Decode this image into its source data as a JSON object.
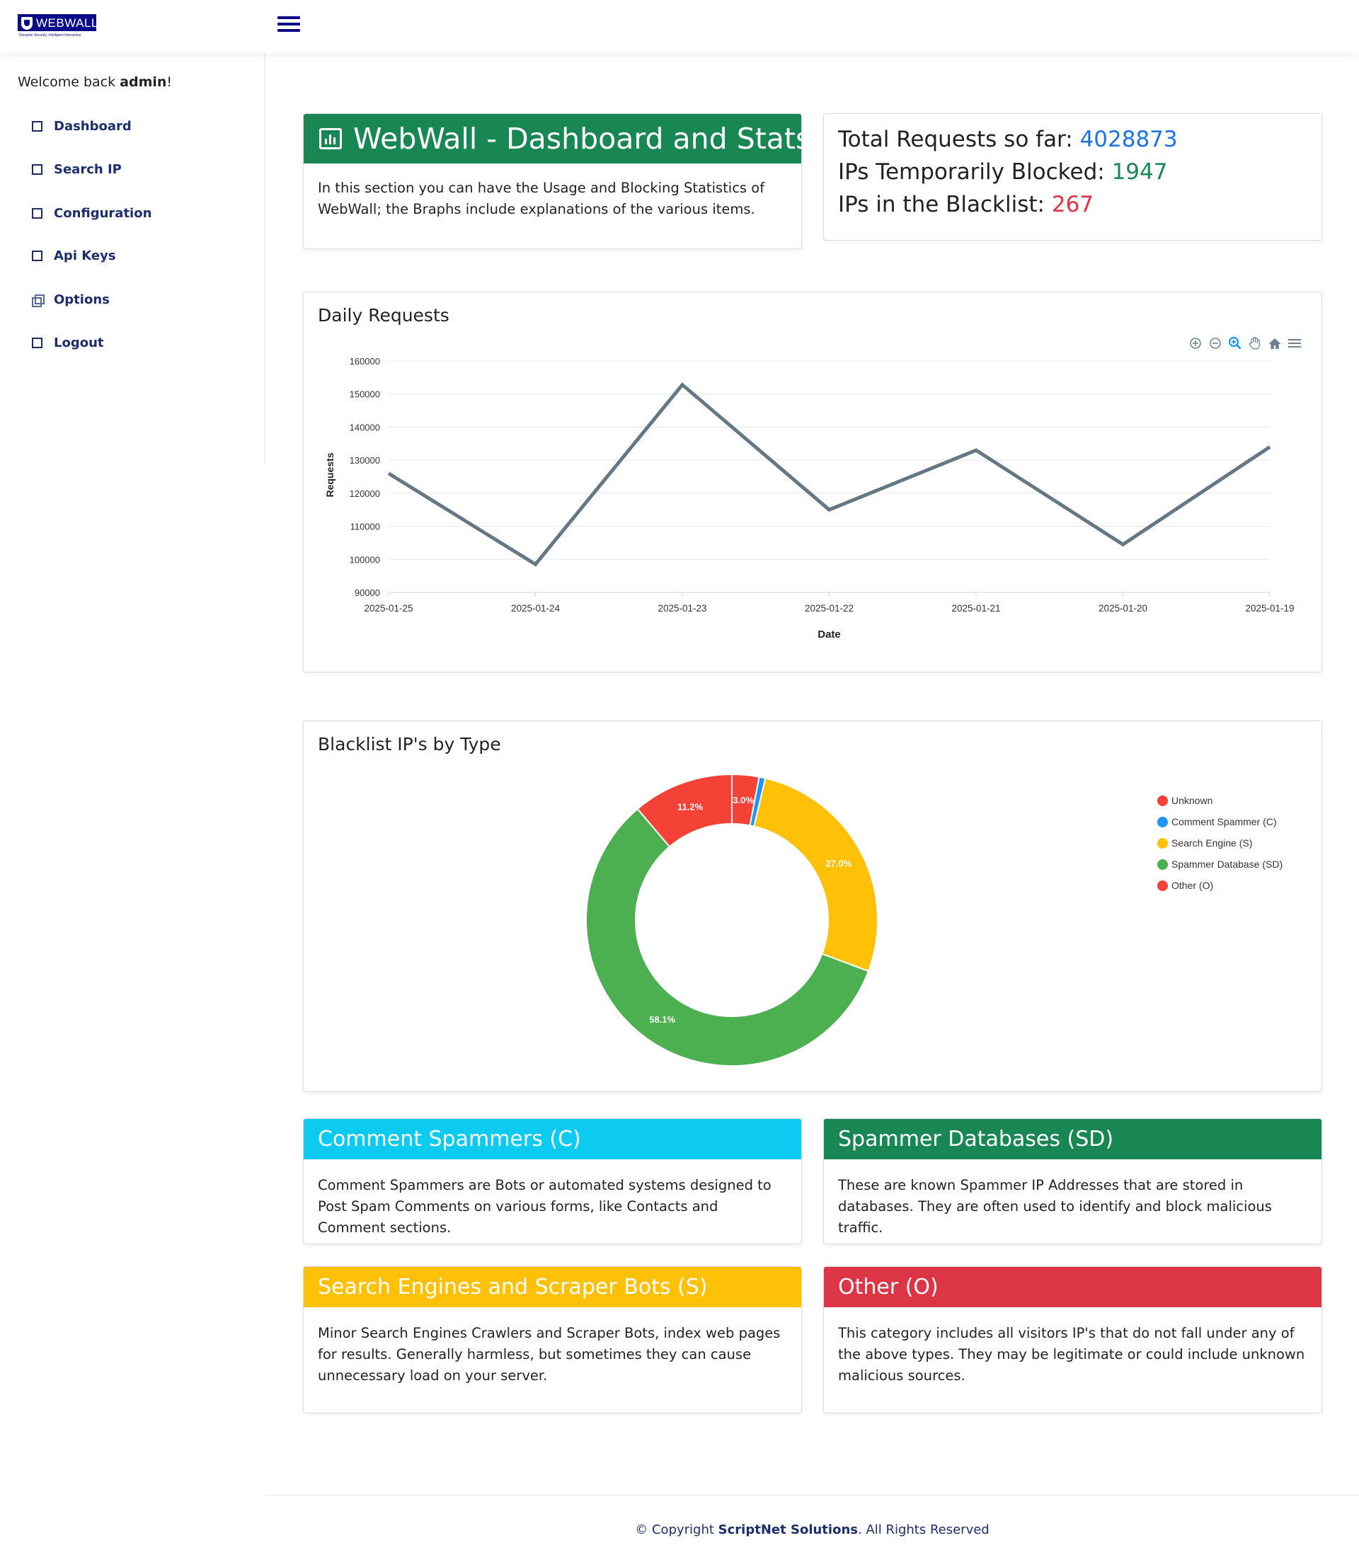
{
  "brand": {
    "logo_text": "WEBWALL",
    "tagline": "Dynamic Security, Intelligent Interaction"
  },
  "sidebar": {
    "welcome_prefix": "Welcome back ",
    "username": "admin",
    "welcome_suffix": "!",
    "items": [
      {
        "label": "Dashboard",
        "icon": "square-icon"
      },
      {
        "label": "Search IP",
        "icon": "square-icon"
      },
      {
        "label": "Configuration",
        "icon": "square-icon"
      },
      {
        "label": "Api Keys",
        "icon": "square-icon"
      },
      {
        "label": "Options",
        "icon": "copy-icon"
      },
      {
        "label": "Logout",
        "icon": "square-icon"
      }
    ]
  },
  "hero": {
    "title": "WebWall - Dashboard and Stats",
    "description": "In this section you can have the Usage and Blocking Statistics of WebWall; the Braphs include explanations of the various items."
  },
  "stats": {
    "total_label": "Total Requests so far: ",
    "total_value": "4028873",
    "blocked_label": "IPs Temporarily Blocked: ",
    "blocked_value": "1947",
    "blacklist_label": "IPs in the Blacklist: ",
    "blacklist_value": "267"
  },
  "daily_chart": {
    "title": "Daily Requests",
    "toolbar": [
      "zoom-in-icon",
      "zoom-out-icon",
      "selection-zoom-icon",
      "pan-hand-icon",
      "reset-home-icon",
      "menu-icon"
    ]
  },
  "blacklist_chart": {
    "title": "Blacklist IP's by Type"
  },
  "chart_data": [
    {
      "type": "line",
      "title": "Daily Requests",
      "xlabel": "Date",
      "ylabel": "Requests",
      "x": [
        "2025-01-25",
        "2025-01-24",
        "2025-01-23",
        "2025-01-22",
        "2025-01-21",
        "2025-01-20",
        "2025-01-19"
      ],
      "values": [
        126000,
        98500,
        152800,
        115000,
        133000,
        104500,
        134000
      ],
      "ylim": [
        90000,
        160000
      ],
      "yticks": [
        90000,
        100000,
        110000,
        120000,
        130000,
        140000,
        150000,
        160000
      ],
      "grid": true,
      "color": "#647883"
    },
    {
      "type": "pie",
      "title": "Blacklist IP's by Type",
      "labels": [
        "Unknown",
        "Comment Spammer (C)",
        "Search Engine (S)",
        "Spammer Database (SD)",
        "Other (O)"
      ],
      "values": [
        3.0,
        0.7,
        27.0,
        58.1,
        11.2
      ],
      "data_labels": [
        "3.0%",
        "",
        "27.0%",
        "58.1%",
        "11.2%"
      ],
      "colors": [
        "#f44336",
        "#2196f3",
        "#ffc107",
        "#4caf50",
        "#f44336"
      ],
      "donut": true,
      "legend": "right"
    }
  ],
  "info_cards": [
    {
      "title": "Comment Spammers (C)",
      "text": "Comment Spammers are Bots or automated systems designed to Post Spam Comments on various forms, like Contacts and Comment sections.",
      "color": "#0dcaf0"
    },
    {
      "title": "Spammer Databases (SD)",
      "text": "These are known Spammer IP Addresses that are stored in databases. They are often used to identify and block malicious traffic.",
      "color": "#198754"
    },
    {
      "title": "Search Engines and Scraper Bots (S)",
      "text": "Minor Search Engines Crawlers and Scraper Bots, index web pages for results. Generally harmless, but sometimes they can cause unnecessary load on your server.",
      "color": "#ffc107"
    },
    {
      "title": "Other (O)",
      "text": "This category includes all visitors IP's that do not fall under any of the above types. They may be legitimate or could include unknown malicious sources.",
      "color": "#dc3545"
    }
  ],
  "footer": {
    "prefix": "© Copyright ",
    "company": "ScriptNet Solutions",
    "suffix": ". All Rights Reserved"
  }
}
